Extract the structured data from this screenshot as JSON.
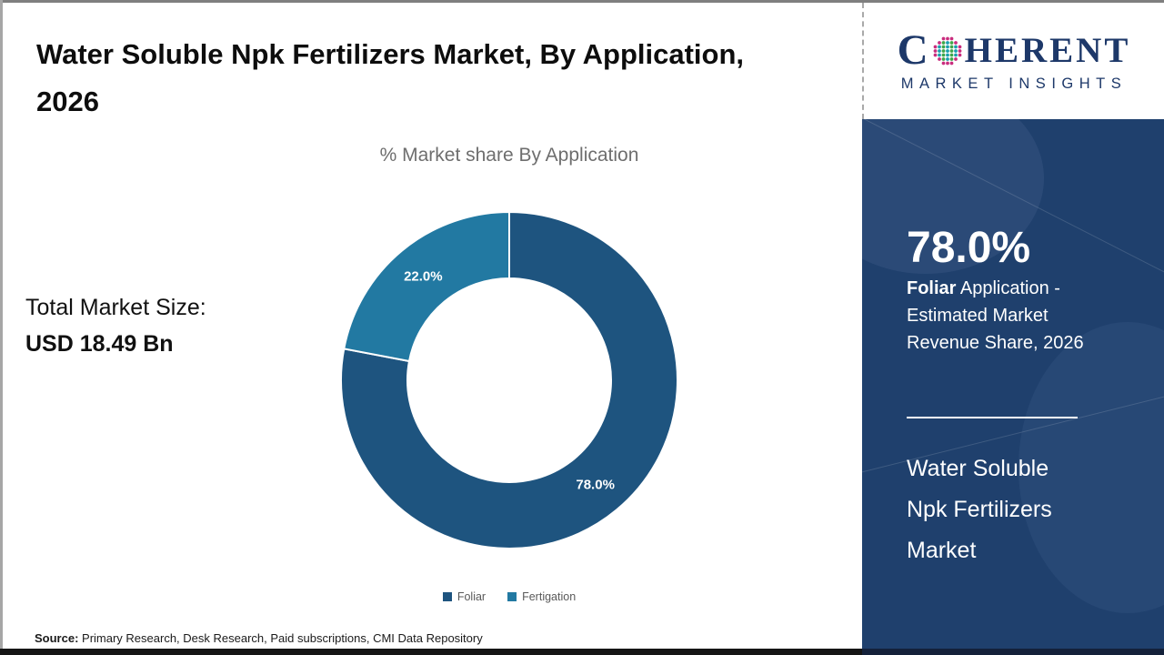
{
  "header": {
    "title": "Water Soluble Npk Fertilizers Market, By Application, 2026"
  },
  "logo": {
    "brand_first_letter": "C",
    "brand_rest": "HERENT",
    "tagline": "MARKET INSIGHTS",
    "brand_color": "#1d3869"
  },
  "totals": {
    "label": "Total Market Size:",
    "value": "USD 18.49 Bn"
  },
  "chart_data": {
    "type": "pie",
    "donut": true,
    "title": "% Market share By Application",
    "categories": [
      "Foliar",
      "Fertigation"
    ],
    "values": [
      78.0,
      22.0
    ],
    "slice_labels": [
      "78.0%",
      "22.0%"
    ],
    "colors": [
      "#1e547f",
      "#2279a2"
    ],
    "legend_position": "bottom",
    "start_angle_deg": -90,
    "direction": "clockwise"
  },
  "sidebar": {
    "background_color": "#1f406d",
    "stat_value": "78.0%",
    "stat_desc_bold": "Foliar",
    "stat_desc_rest": " Application - Estimated Market Revenue Share, 2026",
    "market_name": "Water Soluble Npk Fertilizers Market"
  },
  "source": {
    "label": "Source:",
    "text": " Primary Research, Desk Research, Paid subscriptions, CMI Data Repository"
  }
}
